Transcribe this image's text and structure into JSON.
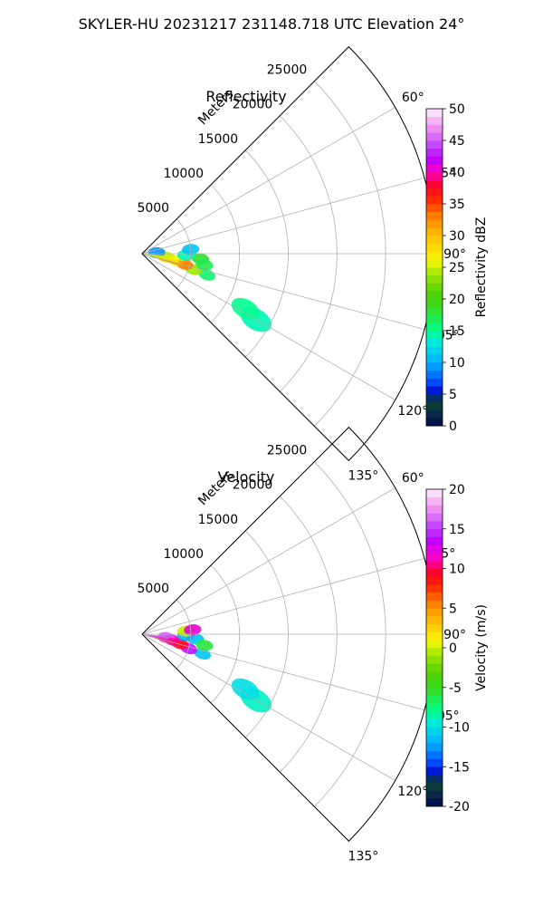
{
  "figure": {
    "suptitle": "SKYLER-HU  20231217  231148.718 UTC Elevation 24°"
  },
  "chart_data": [
    {
      "type": "heatmap",
      "subtype": "polar-sector",
      "title": "Reflectivity",
      "range_label": "Meters",
      "range_ticks": [
        5000,
        10000,
        15000,
        20000,
        25000
      ],
      "range_max": 30000,
      "azimuth_range_deg": [
        45,
        135
      ],
      "azimuth_ticks_deg": [
        60,
        75,
        90,
        105,
        120,
        135
      ],
      "grid": true,
      "colorbar": {
        "label": "Reflectivity dBZ",
        "min": 0,
        "max": 50,
        "ticks": [
          0,
          5,
          10,
          15,
          20,
          25,
          30,
          35,
          40,
          45,
          50
        ],
        "placement": "right"
      },
      "echo_regions": [
        {
          "azimuth_deg": 120,
          "range_m": 13500,
          "value": 14
        },
        {
          "azimuth_deg": 118,
          "range_m": 12000,
          "value": 15
        },
        {
          "azimuth_deg": 108,
          "range_m": 7000,
          "value": 16
        },
        {
          "azimuth_deg": 107,
          "range_m": 5500,
          "value": 24
        },
        {
          "azimuth_deg": 104,
          "range_m": 4500,
          "value": 33
        },
        {
          "azimuth_deg": 101,
          "range_m": 3500,
          "value": 26
        },
        {
          "azimuth_deg": 98,
          "range_m": 2500,
          "value": 25
        },
        {
          "azimuth_deg": 95,
          "range_m": 6000,
          "value": 18
        },
        {
          "azimuth_deg": 92,
          "range_m": 4500,
          "value": 14
        },
        {
          "azimuth_deg": 85,
          "range_m": 5000,
          "value": 11
        },
        {
          "azimuth_deg": 86,
          "range_m": 1500,
          "value": 9
        },
        {
          "azimuth_deg": 100,
          "range_m": 6500,
          "value": 17
        }
      ]
    },
    {
      "type": "heatmap",
      "subtype": "polar-sector",
      "title": "Velocity",
      "range_label": "Meters",
      "range_ticks": [
        5000,
        10000,
        15000,
        20000,
        25000
      ],
      "range_max": 30000,
      "azimuth_range_deg": [
        45,
        135
      ],
      "azimuth_ticks_deg": [
        60,
        75,
        90,
        105,
        120,
        135
      ],
      "grid": true,
      "colorbar": {
        "label": "Velocity (m/s)",
        "min": -20,
        "max": 20,
        "ticks": [
          -20,
          -15,
          -10,
          -5,
          0,
          5,
          10,
          15,
          20
        ],
        "placement": "right"
      },
      "echo_regions": [
        {
          "azimuth_deg": 120,
          "range_m": 13500,
          "value": -9
        },
        {
          "azimuth_deg": 118,
          "range_m": 12000,
          "value": -10
        },
        {
          "azimuth_deg": 108,
          "range_m": 6500,
          "value": -11
        },
        {
          "azimuth_deg": 107,
          "range_m": 5000,
          "value": 14
        },
        {
          "azimuth_deg": 104,
          "range_m": 4000,
          "value": 9
        },
        {
          "azimuth_deg": 101,
          "range_m": 3200,
          "value": 11
        },
        {
          "azimuth_deg": 98,
          "range_m": 2500,
          "value": 16
        },
        {
          "azimuth_deg": 95,
          "range_m": 5500,
          "value": -11
        },
        {
          "azimuth_deg": 92,
          "range_m": 4500,
          "value": -12
        },
        {
          "azimuth_deg": 86,
          "range_m": 4500,
          "value": 0
        },
        {
          "azimuth_deg": 85,
          "range_m": 5200,
          "value": 12
        },
        {
          "azimuth_deg": 100,
          "range_m": 6500,
          "value": -6
        }
      ]
    }
  ]
}
